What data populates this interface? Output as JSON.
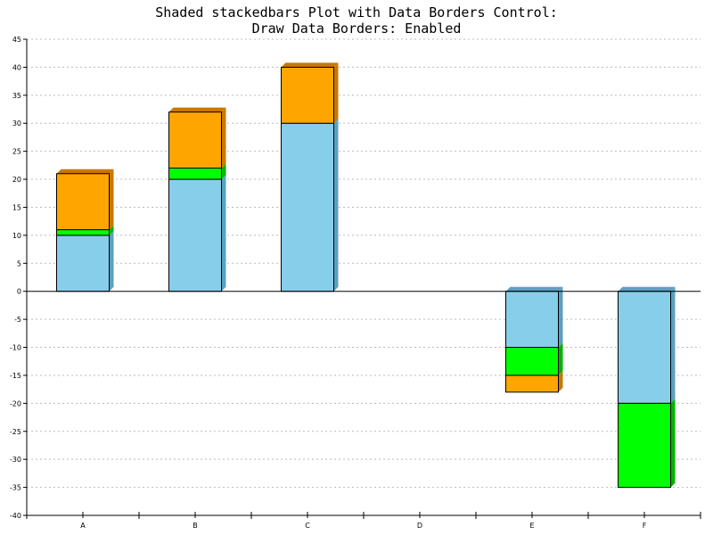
{
  "chart_data": {
    "type": "bar",
    "stacked": true,
    "shaded": true,
    "data_borders": true,
    "title": "Shaded stackedbars Plot with Data Borders Control:",
    "subtitle": "Draw Data Borders: Enabled",
    "xlabel": "",
    "ylabel": "",
    "categories": [
      "A",
      "B",
      "C",
      "D",
      "E",
      "F"
    ],
    "ylim": [
      -40,
      45
    ],
    "ytick_step": 5,
    "grid": true,
    "legend": "none",
    "series": [
      {
        "color": "#87ceeb",
        "shade": "#5aa0c0",
        "values": [
          10,
          20,
          30,
          0,
          -10,
          -20
        ]
      },
      {
        "color": "#00ff00",
        "shade": "#00b400",
        "values": [
          1,
          2,
          0,
          0,
          -5,
          -15
        ]
      },
      {
        "color": "#ffa500",
        "shade": "#c87800",
        "values": [
          10,
          10,
          10,
          0,
          -3,
          0
        ]
      }
    ]
  }
}
